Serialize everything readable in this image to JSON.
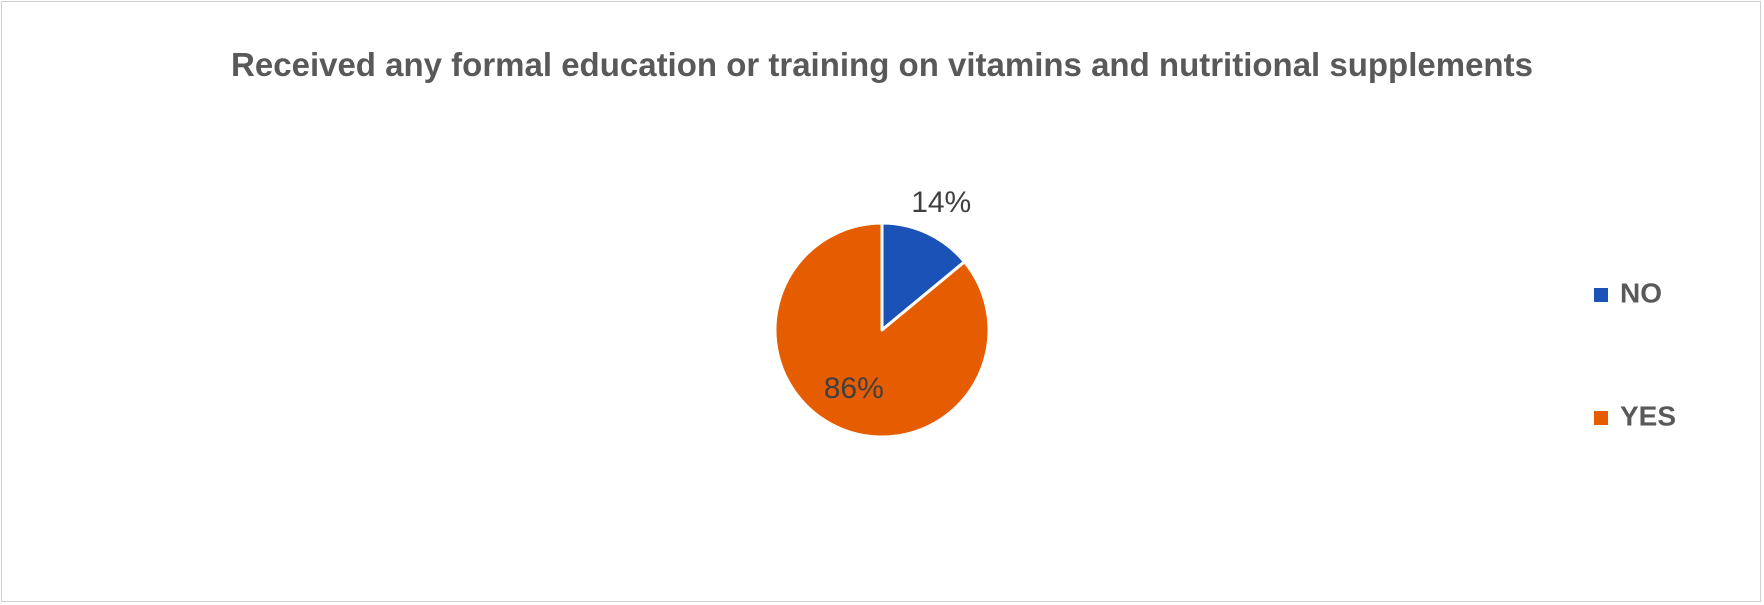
{
  "chart_data": {
    "type": "pie",
    "title": "Received any formal education or training on vitamins and nutritional supplements",
    "categories": [
      "NO",
      "YES"
    ],
    "values": [
      14,
      86
    ],
    "value_labels": [
      "14%",
      "86%"
    ],
    "colors": [
      "#1a52b8",
      "#e65c00"
    ],
    "legend": "right"
  }
}
